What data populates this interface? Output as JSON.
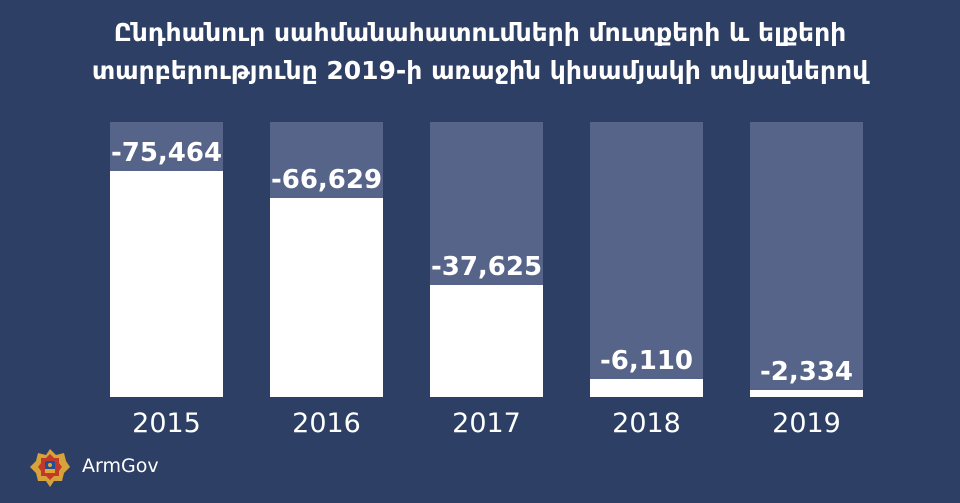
{
  "chart_data": {
    "type": "bar",
    "title_lines": [
      "Ընդհանուր սահմանահատումների մուտքերի և ելքերի",
      "տարբերությունը 2019-ի առաջին կիսամյակի տվյալներով"
    ],
    "categories": [
      "2015",
      "2016",
      "2017",
      "2018",
      "2019"
    ],
    "values": [
      -75464,
      -66629,
      -37625,
      -6110,
      -2334
    ],
    "value_labels": [
      "-75,464",
      "-66,629",
      "-37,625",
      "-6,110",
      "-2,334"
    ],
    "ylim": [
      0,
      92000
    ],
    "grid": false,
    "colors": {
      "background": "#2e3f66",
      "bar_track": "#56648a",
      "bar_fill": "#ffffff",
      "text": "#ffffff"
    }
  },
  "footer": {
    "brand": "ArmGov",
    "logo_icon": "coat-of-arms-icon"
  }
}
